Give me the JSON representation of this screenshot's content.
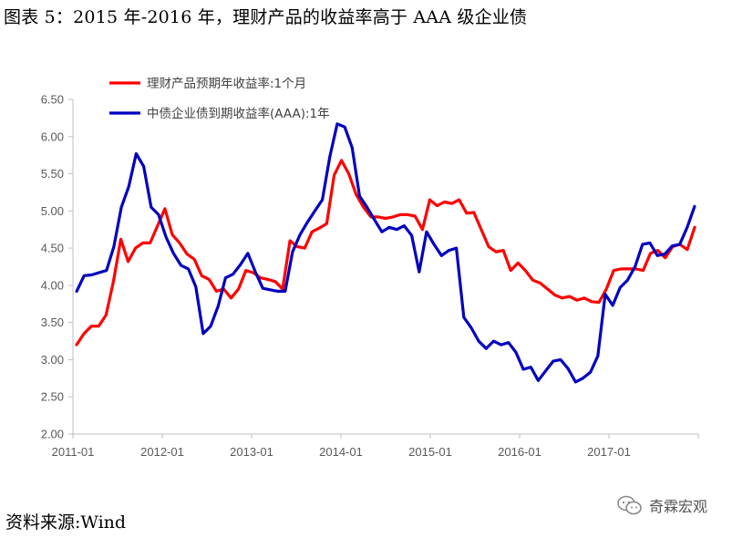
{
  "title": "图表 5：2015 年-2016 年，理财产品的收益率高于 AAA 级企业债",
  "source": "资料来源:Wind",
  "watermark": "奇霖宏观",
  "chart_data": {
    "type": "line",
    "title": "",
    "xlabel": "",
    "ylabel": "",
    "ylim": [
      2.0,
      6.5
    ],
    "yticks": [
      "6.50",
      "6.00",
      "5.50",
      "5.00",
      "4.50",
      "4.00",
      "3.50",
      "3.00",
      "2.50",
      "2.00"
    ],
    "xtick_labels": [
      "2011-01",
      "2012-01",
      "2013-01",
      "2014-01",
      "2015-01",
      "2016-01",
      "2017-01"
    ],
    "x_start": "2011-01",
    "x_end": "2017-12",
    "grid": false,
    "legend_position": "top-left",
    "series": [
      {
        "name": "理财产品预期年收益率:1个月",
        "color": "#ff0000",
        "values": [
          3.2,
          3.35,
          3.45,
          3.45,
          3.6,
          4.05,
          4.62,
          4.32,
          4.5,
          4.57,
          4.57,
          4.8,
          5.03,
          4.68,
          4.57,
          4.42,
          4.35,
          4.13,
          4.08,
          3.92,
          3.95,
          3.83,
          3.95,
          4.2,
          4.17,
          4.1,
          4.08,
          4.05,
          3.95,
          4.6,
          4.52,
          4.5,
          4.72,
          4.77,
          4.83,
          5.48,
          5.68,
          5.5,
          5.22,
          5.05,
          4.92,
          4.92,
          4.9,
          4.92,
          4.95,
          4.95,
          4.93,
          4.75,
          5.15,
          5.07,
          5.12,
          5.1,
          5.15,
          4.97,
          4.98,
          4.75,
          4.52,
          4.45,
          4.47,
          4.2,
          4.3,
          4.2,
          4.07,
          4.03,
          3.95,
          3.87,
          3.83,
          3.85,
          3.8,
          3.83,
          3.78,
          3.77,
          3.95,
          4.2,
          4.22,
          4.22,
          4.22,
          4.2,
          4.43,
          4.47,
          4.37,
          4.52,
          4.55,
          4.48,
          4.78
        ]
      },
      {
        "name": "中债企业债到期收益率(AAA):1年",
        "color": "#0000c0",
        "values": [
          3.92,
          4.13,
          4.14,
          4.17,
          4.2,
          4.52,
          5.05,
          5.33,
          5.77,
          5.6,
          5.05,
          4.95,
          4.65,
          4.43,
          4.27,
          4.22,
          3.98,
          3.35,
          3.45,
          3.72,
          4.1,
          4.15,
          4.28,
          4.43,
          4.18,
          3.96,
          3.94,
          3.92,
          3.92,
          4.45,
          4.68,
          4.85,
          5.0,
          5.15,
          5.73,
          6.17,
          6.13,
          5.85,
          5.2,
          5.05,
          4.88,
          4.72,
          4.78,
          4.75,
          4.8,
          4.67,
          4.18,
          4.72,
          4.55,
          4.4,
          4.47,
          4.5,
          3.57,
          3.43,
          3.25,
          3.15,
          3.25,
          3.2,
          3.23,
          3.1,
          2.87,
          2.9,
          2.72,
          2.85,
          2.98,
          3.0,
          2.88,
          2.7,
          2.75,
          2.83,
          3.05,
          3.88,
          3.73,
          3.97,
          4.07,
          4.25,
          4.55,
          4.57,
          4.4,
          4.42,
          4.53,
          4.55,
          4.78,
          5.06
        ]
      }
    ]
  }
}
